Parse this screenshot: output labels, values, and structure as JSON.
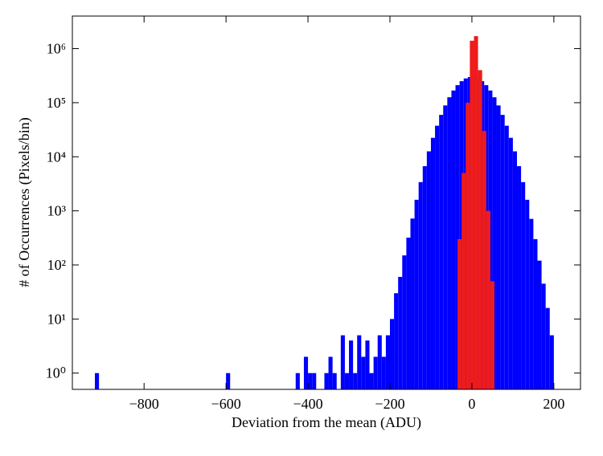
{
  "chart_data": {
    "type": "histogram",
    "xlabel": "Deviation from the mean (ADU)",
    "ylabel": "# of Occurrences (Pixels/bin)",
    "xlim": [
      -975,
      265
    ],
    "ylim": [
      0.5,
      4000000
    ],
    "ylog": true,
    "xticks": [
      {
        "value": -800,
        "label": "−800"
      },
      {
        "value": -600,
        "label": "−600"
      },
      {
        "value": -400,
        "label": "−400"
      },
      {
        "value": -200,
        "label": "−200"
      },
      0,
      200
    ],
    "yticks": [
      {
        "value": 1,
        "label": "10⁰"
      },
      {
        "value": 10,
        "label": "10¹"
      },
      {
        "value": 100,
        "label": "10²"
      },
      {
        "value": 1000,
        "label": "10³"
      },
      {
        "value": 10000,
        "label": "10⁴"
      },
      {
        "value": 100000,
        "label": "10⁵"
      },
      {
        "value": 1000000,
        "label": "10⁶"
      }
    ],
    "series": [
      {
        "color": "#0000ff",
        "bins": [
          -920,
          -910,
          -900,
          -890,
          -880,
          -870,
          -860,
          -850,
          -840,
          -830,
          -820,
          -810,
          -800,
          -790,
          -780,
          -770,
          -760,
          -750,
          -740,
          -730,
          -720,
          -710,
          -700,
          -690,
          -680,
          -670,
          -660,
          -650,
          -640,
          -630,
          -620,
          -610,
          -600,
          -590,
          -580,
          -570,
          -560,
          -550,
          -540,
          -530,
          -520,
          -510,
          -500,
          -490,
          -480,
          -470,
          -460,
          -450,
          -440,
          -430,
          -420,
          -410,
          -400,
          -390,
          -380,
          -370,
          -360,
          -350,
          -340,
          -330,
          -320,
          -310,
          -300,
          -290,
          -280,
          -270,
          -260,
          -250,
          -240,
          -230,
          -220,
          -210,
          -200,
          -190,
          -180,
          -170,
          -160,
          -150,
          -140,
          -130,
          -120,
          -110,
          -100,
          -90,
          -80,
          -70,
          -60,
          -50,
          -40,
          -30,
          -20,
          -10,
          0,
          10,
          20,
          30,
          40,
          50,
          60,
          70,
          80,
          90,
          100,
          110,
          120,
          130,
          140,
          150,
          160,
          170,
          180,
          190,
          200
        ],
        "values": [
          1,
          0,
          0,
          0,
          0,
          0,
          0,
          0,
          0,
          0,
          0,
          0,
          0,
          0,
          0,
          0,
          0,
          0,
          0,
          0,
          0,
          0,
          0,
          0,
          0,
          0,
          0,
          0,
          0,
          0,
          0,
          0,
          1,
          0,
          0,
          0,
          0,
          0,
          0,
          0,
          0,
          0,
          0,
          0,
          0,
          0,
          0,
          0,
          0,
          1,
          0,
          2,
          1,
          1,
          0,
          0,
          1,
          2,
          1,
          0,
          5,
          1,
          4,
          1,
          5,
          2,
          4,
          1,
          2,
          5,
          2,
          5,
          10,
          30,
          60,
          150,
          320,
          720,
          1600,
          3400,
          6700,
          12600,
          22400,
          37500,
          59500,
          89000,
          126000,
          168000,
          211000,
          250000,
          281000,
          298000,
          298000,
          281000,
          250000,
          211000,
          168000,
          126000,
          89000,
          59500,
          37500,
          22400,
          12600,
          6700,
          3400,
          1600,
          710,
          300,
          120,
          45,
          16,
          5
        ]
      },
      {
        "color": "#ee1c1c",
        "bins": [
          -35,
          -25,
          -15,
          -5,
          5,
          15,
          25,
          35,
          45,
          55
        ],
        "values": [
          300,
          5000,
          100000,
          1400000,
          1700000,
          400000,
          30000,
          1000,
          50
        ]
      }
    ]
  }
}
